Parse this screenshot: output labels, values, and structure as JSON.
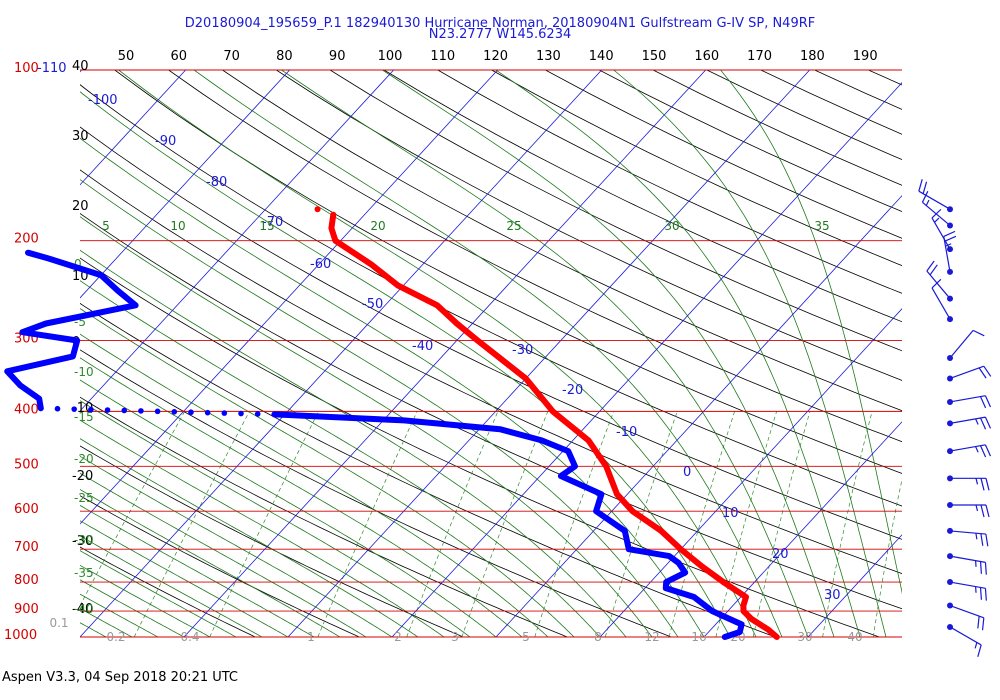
{
  "title_line1": "D20180904_195659_P.1 182940130 Hurricane Norman, 20180904N1 Gulfstream G-IV SP, N49RF",
  "title_line2": "N23.2777 W145.6234",
  "footer": "Aspen V3.3, 04 Sep 2018  20:21 UTC",
  "colors": {
    "isobar": "#d40000",
    "pressure_label": "#d40000",
    "isotherm": "#1a1ad6",
    "dry_adiabat": "#000000",
    "mixing_ratio": "#2e8b2e",
    "moist_adiabat": "#1f7a1f",
    "temperature": "#ff0000",
    "dewpoint": "#0000ff",
    "wind_barb": "#1a1ad6"
  },
  "chart_data": {
    "type": "skew-t log-p diagram",
    "pressure_levels_hPa": [
      100,
      200,
      300,
      400,
      500,
      600,
      700,
      800,
      900,
      1000
    ],
    "top_pressure_pair": "100-110",
    "top_temperature_ticks_F": [
      50,
      60,
      70,
      80,
      90,
      100,
      110,
      120,
      130,
      140,
      150,
      160,
      170,
      180,
      190
    ],
    "left_temperature_ticks_C": [
      "40",
      "30",
      "20",
      "10",
      "0",
      "-10",
      "-20",
      "-30",
      "-40"
    ],
    "isotherm_labels_C": [
      "-100",
      "-90",
      "-80",
      "-70",
      "-60",
      "-50",
      "-40",
      "-30",
      "-20",
      "-10",
      "0",
      "10",
      "20",
      "30"
    ],
    "moist_adiabat_labels_C": [
      "5",
      "10",
      "15",
      "20",
      "25",
      "30",
      "35"
    ],
    "left_green_labels": [
      "0",
      "-5",
      "-10",
      "-15",
      "-20",
      "-25",
      "-30",
      "-35",
      "-40"
    ],
    "mixing_ratio_labels_gkg": [
      "0.1",
      "0.2",
      "0.4",
      "1",
      "2",
      "3",
      "5",
      "8",
      "12",
      "16",
      "20",
      "30",
      "40"
    ],
    "temperature_profile": [
      {
        "p": 1000,
        "t": 27.0
      },
      {
        "p": 970,
        "t": 25.5
      },
      {
        "p": 930,
        "t": 23.0
      },
      {
        "p": 900,
        "t": 21.5
      },
      {
        "p": 880,
        "t": 21.0
      },
      {
        "p": 850,
        "t": 20.5
      },
      {
        "p": 800,
        "t": 17.0
      },
      {
        "p": 750,
        "t": 13.5
      },
      {
        "p": 700,
        "t": 10.0
      },
      {
        "p": 650,
        "t": 6.5
      },
      {
        "p": 600,
        "t": 2.0
      },
      {
        "p": 560,
        "t": -1.0
      },
      {
        "p": 500,
        "t": -4.5
      },
      {
        "p": 450,
        "t": -8.5
      },
      {
        "p": 400,
        "t": -14.5
      },
      {
        "p": 350,
        "t": -20.0
      },
      {
        "p": 300,
        "t": -28.0
      },
      {
        "p": 280,
        "t": -31.5
      },
      {
        "p": 260,
        "t": -35.0
      },
      {
        "p": 240,
        "t": -40.5
      },
      {
        "p": 220,
        "t": -45.0
      },
      {
        "p": 200,
        "t": -50.5
      },
      {
        "p": 190,
        "t": -52.0
      },
      {
        "p": 180,
        "t": -53.0
      }
    ],
    "temperature_isolated_point": {
      "p": 176,
      "t": -55.0
    },
    "dewpoint_profile": [
      {
        "p": 1000,
        "td": 22.0
      },
      {
        "p": 980,
        "td": 23.0
      },
      {
        "p": 950,
        "td": 22.5
      },
      {
        "p": 900,
        "td": 18.5
      },
      {
        "p": 850,
        "td": 15.5
      },
      {
        "p": 820,
        "td": 12.0
      },
      {
        "p": 800,
        "td": 11.5
      },
      {
        "p": 770,
        "td": 12.5
      },
      {
        "p": 740,
        "td": 11.0
      },
      {
        "p": 720,
        "td": 9.5
      },
      {
        "p": 700,
        "td": 5.0
      },
      {
        "p": 650,
        "td": 3.0
      },
      {
        "p": 600,
        "td": -1.5
      },
      {
        "p": 560,
        "td": -2.5
      },
      {
        "p": 520,
        "td": -8.0
      },
      {
        "p": 500,
        "td": -7.5
      },
      {
        "p": 470,
        "td": -9.5
      },
      {
        "p": 450,
        "td": -13.0
      },
      {
        "p": 430,
        "td": -18.0
      },
      {
        "p": 415,
        "td": -28.0
      },
      {
        "p": 405,
        "td": -41.0
      }
    ],
    "dewpoint_dotted_segment": [
      {
        "p": 405,
        "td": -41.0
      },
      {
        "p": 395,
        "td": -64.0
      }
    ],
    "dewpoint_upper": [
      {
        "p": 395,
        "td": -64.0
      },
      {
        "p": 380,
        "td": -65.0
      },
      {
        "p": 360,
        "td": -68.0
      },
      {
        "p": 340,
        "td": -70.5
      },
      {
        "p": 320,
        "td": -65.5
      },
      {
        "p": 300,
        "td": -66.5
      },
      {
        "p": 290,
        "td": -72.5
      },
      {
        "p": 280,
        "td": -71.0
      },
      {
        "p": 260,
        "td": -64.0
      },
      {
        "p": 245,
        "td": -67.0
      },
      {
        "p": 230,
        "td": -70.0
      },
      {
        "p": 215,
        "td": -76.5
      },
      {
        "p": 210,
        "td": -79.0
      }
    ],
    "wind_barbs": [
      {
        "p": 176,
        "dir": 300,
        "spd": 20
      },
      {
        "p": 188,
        "dir": 310,
        "spd": 15
      },
      {
        "p": 207,
        "dir": 330,
        "spd": 15
      },
      {
        "p": 227,
        "dir": 350,
        "spd": 25
      },
      {
        "p": 253,
        "dir": 320,
        "spd": 20
      },
      {
        "p": 275,
        "dir": 330,
        "spd": 10
      },
      {
        "p": 322,
        "dir": 40,
        "spd": 10
      },
      {
        "p": 350,
        "dir": 70,
        "spd": 20
      },
      {
        "p": 385,
        "dir": 80,
        "spd": 20
      },
      {
        "p": 420,
        "dir": 80,
        "spd": 25
      },
      {
        "p": 470,
        "dir": 80,
        "spd": 25
      },
      {
        "p": 525,
        "dir": 90,
        "spd": 25
      },
      {
        "p": 585,
        "dir": 90,
        "spd": 25
      },
      {
        "p": 650,
        "dir": 95,
        "spd": 25
      },
      {
        "p": 720,
        "dir": 100,
        "spd": 25
      },
      {
        "p": 800,
        "dir": 100,
        "spd": 25
      },
      {
        "p": 880,
        "dir": 110,
        "spd": 20
      },
      {
        "p": 960,
        "dir": 120,
        "spd": 15
      }
    ]
  }
}
